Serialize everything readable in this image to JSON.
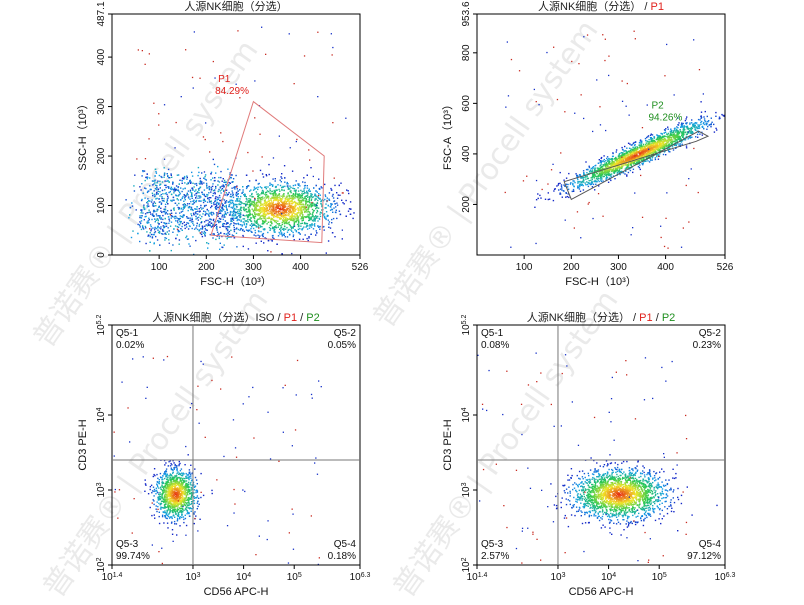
{
  "watermark": "普诺赛® | Procell system",
  "colors": {
    "frame": "#000000",
    "gate_p1": "#e07a7a",
    "gate_p2": "#555555",
    "label_red": "#e0201b",
    "label_green": "#1f8f1f",
    "quad_line": "#777777"
  },
  "chart_data": [
    {
      "type": "scatter",
      "subtype": "flow-cytometry-density",
      "title": {
        "base": "人源NK细胞（分选）",
        "gates": []
      },
      "xlabel": "FSC-H（10³）",
      "ylabel": "SSC-H（10³）",
      "xlim": [
        0,
        526
      ],
      "ylim": [
        0,
        487.1
      ],
      "xticks": [
        "100",
        "200",
        "300",
        "400",
        "526"
      ],
      "yticks": [
        "0",
        "100",
        "200",
        "300",
        "400",
        "487.1"
      ],
      "ytick_values": [
        0,
        100,
        200,
        300,
        400,
        487.1
      ],
      "xtick_values": [
        100,
        200,
        300,
        400,
        526
      ],
      "gate": {
        "name": "P1",
        "percent": "84.29%",
        "polygon": [
          [
            210,
            40
          ],
          [
            300,
            310
          ],
          [
            450,
            200
          ],
          [
            445,
            25
          ]
        ],
        "label_pos": [
          225,
          350
        ]
      },
      "population": {
        "center": [
          355,
          95
        ],
        "spread": [
          95,
          45
        ],
        "tail_from": [
          60,
          50
        ],
        "density": 9000
      }
    },
    {
      "type": "scatter",
      "subtype": "flow-cytometry-density",
      "title": {
        "base": "人源NK细胞（分选）",
        "gates": [
          "P1"
        ]
      },
      "xlabel": "FSC-H（10³）",
      "ylabel": "FSC-A（10³）",
      "xlim": [
        0,
        526
      ],
      "ylim": [
        0,
        953.6
      ],
      "xticks": [
        "100",
        "200",
        "300",
        "400",
        "526"
      ],
      "yticks": [
        "200",
        "400",
        "600",
        "800",
        "953.6"
      ],
      "ytick_values": [
        200,
        400,
        600,
        800,
        953.6
      ],
      "xtick_values": [
        100,
        200,
        300,
        400,
        526
      ],
      "gate": {
        "name": "P2",
        "percent": "94.26%",
        "polygon": [
          [
            185,
            290
          ],
          [
            200,
            220
          ],
          [
            470,
            490
          ],
          [
            490,
            470
          ],
          [
            465,
            450
          ]
        ],
        "label_pos": [
          370,
          580
        ]
      },
      "population": {
        "center": [
          340,
          400
        ],
        "spread": [
          70,
          50
        ],
        "diagonal": true,
        "density": 6000
      }
    },
    {
      "type": "scatter",
      "subtype": "flow-cytometry-quadrant",
      "title": {
        "base": "人源NK细胞（分选）ISO",
        "gates": [
          "P1",
          "P2"
        ]
      },
      "xlabel": "CD56 APC-H",
      "ylabel": "CD3 PE-H",
      "log_scale": true,
      "xlim_log": [
        1.4,
        6.3
      ],
      "ylim_log": [
        2,
        5.2
      ],
      "xticks_log": [
        1.4,
        3,
        4,
        5,
        6.3
      ],
      "yticks_log": [
        2,
        3,
        4,
        5.2
      ],
      "xtick_labels": [
        "1.4",
        "3",
        "4",
        "5",
        "6.3"
      ],
      "ytick_labels": [
        "2",
        "3",
        "4",
        "5.2"
      ],
      "quad_x_log": 3.0,
      "quad_y_log": 3.4,
      "quadrants": [
        {
          "name": "Q5-1",
          "percent": "0.02%",
          "pos": "top-left"
        },
        {
          "name": "Q5-2",
          "percent": "0.05%",
          "pos": "top-right"
        },
        {
          "name": "Q5-3",
          "percent": "99.74%",
          "pos": "bottom-left"
        },
        {
          "name": "Q5-4",
          "percent": "0.18%",
          "pos": "bottom-right"
        }
      ],
      "population": {
        "center": [
          2.65,
          2.95
        ],
        "spread": [
          0.2,
          0.16
        ],
        "density": 3500
      }
    },
    {
      "type": "scatter",
      "subtype": "flow-cytometry-quadrant",
      "title": {
        "base": "人源NK细胞（分选）",
        "gates": [
          "P1",
          "P2"
        ]
      },
      "xlabel": "CD56 APC-H",
      "ylabel": "CD3 PE-H",
      "log_scale": true,
      "xlim_log": [
        1.4,
        6.3
      ],
      "ylim_log": [
        2,
        5.2
      ],
      "xticks_log": [
        1.4,
        3,
        4,
        5,
        6.3
      ],
      "yticks_log": [
        2,
        3,
        4,
        5.2
      ],
      "xtick_labels": [
        "1.4",
        "3",
        "4",
        "5",
        "6.3"
      ],
      "ytick_labels": [
        "2",
        "3",
        "4",
        "5.2"
      ],
      "quad_x_log": 3.0,
      "quad_y_log": 3.4,
      "quadrants": [
        {
          "name": "Q5-1",
          "percent": "0.08%",
          "pos": "top-left"
        },
        {
          "name": "Q5-2",
          "percent": "0.23%",
          "pos": "top-right"
        },
        {
          "name": "Q5-3",
          "percent": "2.57%",
          "pos": "bottom-left"
        },
        {
          "name": "Q5-4",
          "percent": "97.12%",
          "pos": "bottom-right"
        }
      ],
      "population": {
        "center": [
          4.2,
          2.95
        ],
        "spread": [
          0.45,
          0.16
        ],
        "density": 6000
      }
    }
  ]
}
